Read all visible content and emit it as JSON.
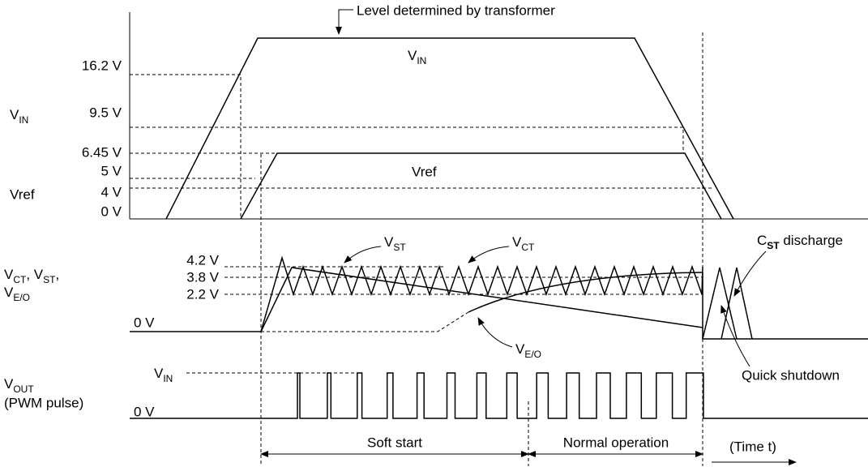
{
  "top_note": "Level determined by transformer",
  "vin_trace": [
    {
      "text": "V"
    },
    {
      "sub": "IN"
    }
  ],
  "vref_trace": "Vref",
  "vin_axis": [
    {
      "text": "V"
    },
    {
      "sub": "IN"
    }
  ],
  "vref_axis": "Vref",
  "levels_top": [
    "16.2 V",
    "9.5 V",
    "6.45 V",
    "5 V",
    "4 V",
    "0 V"
  ],
  "mid_axis_1": [
    {
      "text": "V"
    },
    {
      "sub": "CT"
    },
    {
      "text": ", V"
    },
    {
      "sub": "ST"
    },
    {
      "text": ","
    }
  ],
  "mid_axis_2": [
    {
      "text": "V"
    },
    {
      "sub": "E/O"
    }
  ],
  "levels_mid": [
    "4.2 V",
    "3.8 V",
    "2.2 V",
    "0 V"
  ],
  "vst_note": [
    {
      "text": "V"
    },
    {
      "sub": "ST"
    }
  ],
  "vct_note": [
    {
      "text": "V"
    },
    {
      "sub": "CT"
    }
  ],
  "veo_note": [
    {
      "text": "V"
    },
    {
      "sub": "E/O"
    }
  ],
  "cst_note": [
    {
      "text": "C"
    },
    {
      "sub": "ST"
    },
    {
      "text": " discharge"
    }
  ],
  "shutdown_note": "Quick shutdown",
  "out_axis_1": [
    {
      "text": "V"
    },
    {
      "sub": "OUT"
    }
  ],
  "out_axis_2": "(PWM pulse)",
  "out_high": [
    {
      "text": "V"
    },
    {
      "sub": "IN"
    }
  ],
  "out_low": "0 V",
  "phase_soft": "Soft start",
  "phase_normal": "Normal operation",
  "time_label": "(Time t)"
}
